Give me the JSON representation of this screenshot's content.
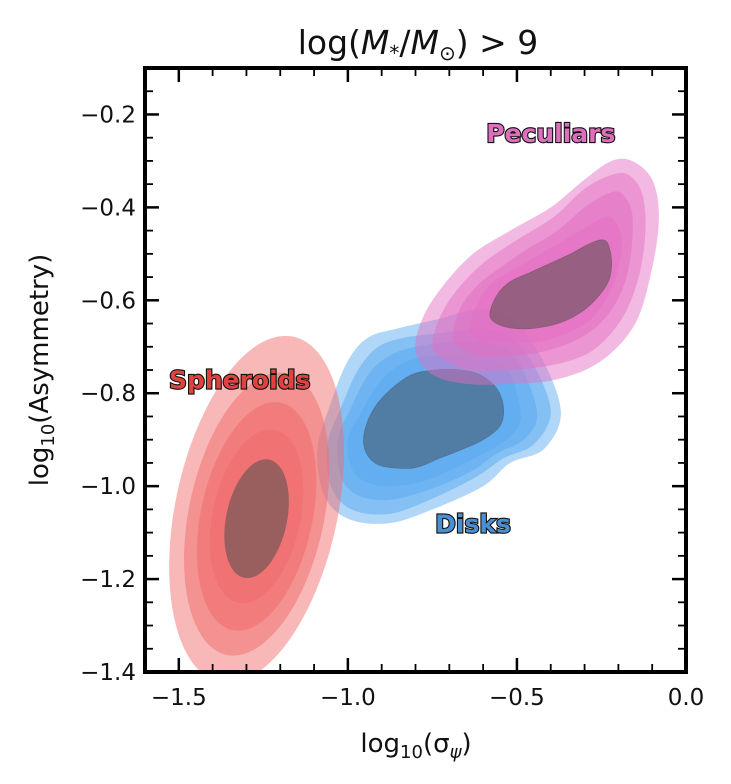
{
  "chart_data": {
    "type": "contour",
    "title_parts": {
      "prefix": "log(",
      "m1": "M",
      "m1_sub": "*",
      "slash": "/",
      "m2": "M",
      "m2_sub": "⊙",
      "suffix": ") > 9"
    },
    "xlabel_parts": {
      "prefix": "log",
      "sub": "10",
      "mid": "(σ",
      "var_sub": "ψ",
      "suffix": ")"
    },
    "ylabel_parts": {
      "prefix": "log",
      "sub": "10",
      "suffix": "(Asymmetry)"
    },
    "xlim": [
      -1.6,
      0.0
    ],
    "ylim": [
      -1.4,
      -0.1
    ],
    "x_ticks": [
      -1.5,
      -1.0,
      -0.5,
      0.0
    ],
    "x_tick_labels": [
      "−1.5",
      "−1.0",
      "−0.5",
      "0.0"
    ],
    "y_ticks": [
      -0.2,
      -0.4,
      -0.6,
      -0.8,
      -1.0,
      -1.2,
      -1.4
    ],
    "y_tick_labels": [
      "−0.2",
      "−0.4",
      "−0.6",
      "−0.8",
      "−1.0",
      "−1.2",
      "−1.4"
    ],
    "series": [
      {
        "name": "Disks",
        "color": "#5aa9f0",
        "dark_color": "#4f7396",
        "label_color": "#4a8fd1",
        "label_pos": [
          -0.63,
          -1.08
        ],
        "levels": [
          [
            [
              -1.09,
              -0.92
            ],
            [
              -1.05,
              -0.82
            ],
            [
              -1.0,
              -0.73
            ],
            [
              -0.94,
              -0.68
            ],
            [
              -0.85,
              -0.66
            ],
            [
              -0.73,
              -0.64
            ],
            [
              -0.62,
              -0.62
            ],
            [
              -0.52,
              -0.64
            ],
            [
              -0.43,
              -0.72
            ],
            [
              -0.37,
              -0.84
            ],
            [
              -0.42,
              -0.92
            ],
            [
              -0.52,
              -0.95
            ],
            [
              -0.6,
              -1.0
            ],
            [
              -0.75,
              -1.05
            ],
            [
              -0.88,
              -1.08
            ],
            [
              -1.0,
              -1.07
            ],
            [
              -1.07,
              -1.02
            ]
          ],
          [
            [
              -1.06,
              -0.91
            ],
            [
              -1.02,
              -0.83
            ],
            [
              -0.97,
              -0.75
            ],
            [
              -0.91,
              -0.7
            ],
            [
              -0.83,
              -0.68
            ],
            [
              -0.72,
              -0.67
            ],
            [
              -0.61,
              -0.66
            ],
            [
              -0.52,
              -0.68
            ],
            [
              -0.45,
              -0.74
            ],
            [
              -0.4,
              -0.84
            ],
            [
              -0.45,
              -0.91
            ],
            [
              -0.54,
              -0.94
            ],
            [
              -0.62,
              -0.98
            ],
            [
              -0.76,
              -1.03
            ],
            [
              -0.88,
              -1.06
            ],
            [
              -0.99,
              -1.05
            ],
            [
              -1.05,
              -1.0
            ]
          ],
          [
            [
              -1.03,
              -0.9
            ],
            [
              -0.99,
              -0.83
            ],
            [
              -0.94,
              -0.76
            ],
            [
              -0.88,
              -0.72
            ],
            [
              -0.8,
              -0.7
            ],
            [
              -0.7,
              -0.69
            ],
            [
              -0.6,
              -0.69
            ],
            [
              -0.52,
              -0.71
            ],
            [
              -0.47,
              -0.77
            ],
            [
              -0.44,
              -0.85
            ],
            [
              -0.48,
              -0.9
            ],
            [
              -0.56,
              -0.93
            ],
            [
              -0.64,
              -0.97
            ],
            [
              -0.77,
              -1.01
            ],
            [
              -0.88,
              -1.03
            ],
            [
              -0.97,
              -1.02
            ],
            [
              -1.02,
              -0.98
            ]
          ],
          [
            [
              -1.0,
              -0.9
            ],
            [
              -0.96,
              -0.84
            ],
            [
              -0.91,
              -0.78
            ],
            [
              -0.85,
              -0.74
            ],
            [
              -0.77,
              -0.72
            ],
            [
              -0.68,
              -0.72
            ],
            [
              -0.6,
              -0.72
            ],
            [
              -0.53,
              -0.75
            ],
            [
              -0.5,
              -0.8
            ],
            [
              -0.49,
              -0.86
            ],
            [
              -0.53,
              -0.9
            ],
            [
              -0.6,
              -0.93
            ],
            [
              -0.68,
              -0.96
            ],
            [
              -0.78,
              -0.99
            ],
            [
              -0.88,
              -1.0
            ],
            [
              -0.95,
              -0.99
            ],
            [
              -0.99,
              -0.96
            ]
          ],
          [
            [
              -0.95,
              -0.88
            ],
            [
              -0.92,
              -0.83
            ],
            [
              -0.87,
              -0.79
            ],
            [
              -0.81,
              -0.76
            ],
            [
              -0.74,
              -0.75
            ],
            [
              -0.67,
              -0.75
            ],
            [
              -0.61,
              -0.76
            ],
            [
              -0.56,
              -0.79
            ],
            [
              -0.54,
              -0.83
            ],
            [
              -0.55,
              -0.87
            ],
            [
              -0.6,
              -0.9
            ],
            [
              -0.66,
              -0.92
            ],
            [
              -0.73,
              -0.94
            ],
            [
              -0.8,
              -0.96
            ],
            [
              -0.87,
              -0.96
            ],
            [
              -0.92,
              -0.95
            ],
            [
              -0.95,
              -0.92
            ]
          ]
        ]
      },
      {
        "name": "Peculiars",
        "color": "#e36fc2",
        "dark_color": "#8a5a74",
        "label_color": "#de6fbf",
        "label_pos": [
          -0.4,
          -0.24
        ],
        "levels": [
          [
            [
              -0.8,
              -0.71
            ],
            [
              -0.78,
              -0.64
            ],
            [
              -0.72,
              -0.57
            ],
            [
              -0.63,
              -0.5
            ],
            [
              -0.52,
              -0.45
            ],
            [
              -0.4,
              -0.4
            ],
            [
              -0.3,
              -0.34
            ],
            [
              -0.22,
              -0.3
            ],
            [
              -0.16,
              -0.3
            ],
            [
              -0.1,
              -0.34
            ],
            [
              -0.08,
              -0.42
            ],
            [
              -0.1,
              -0.53
            ],
            [
              -0.15,
              -0.65
            ],
            [
              -0.25,
              -0.73
            ],
            [
              -0.38,
              -0.77
            ],
            [
              -0.52,
              -0.78
            ],
            [
              -0.65,
              -0.78
            ],
            [
              -0.75,
              -0.76
            ]
          ],
          [
            [
              -0.75,
              -0.7
            ],
            [
              -0.73,
              -0.64
            ],
            [
              -0.68,
              -0.58
            ],
            [
              -0.6,
              -0.52
            ],
            [
              -0.5,
              -0.47
            ],
            [
              -0.39,
              -0.42
            ],
            [
              -0.3,
              -0.36
            ],
            [
              -0.22,
              -0.33
            ],
            [
              -0.17,
              -0.33
            ],
            [
              -0.13,
              -0.37
            ],
            [
              -0.12,
              -0.45
            ],
            [
              -0.14,
              -0.55
            ],
            [
              -0.19,
              -0.64
            ],
            [
              -0.28,
              -0.71
            ],
            [
              -0.4,
              -0.74
            ],
            [
              -0.53,
              -0.75
            ],
            [
              -0.64,
              -0.75
            ],
            [
              -0.71,
              -0.73
            ]
          ],
          [
            [
              -0.69,
              -0.68
            ],
            [
              -0.67,
              -0.62
            ],
            [
              -0.62,
              -0.57
            ],
            [
              -0.55,
              -0.53
            ],
            [
              -0.47,
              -0.49
            ],
            [
              -0.38,
              -0.45
            ],
            [
              -0.3,
              -0.4
            ],
            [
              -0.23,
              -0.37
            ],
            [
              -0.19,
              -0.37
            ],
            [
              -0.16,
              -0.41
            ],
            [
              -0.16,
              -0.48
            ],
            [
              -0.18,
              -0.56
            ],
            [
              -0.23,
              -0.63
            ],
            [
              -0.31,
              -0.68
            ],
            [
              -0.42,
              -0.71
            ],
            [
              -0.53,
              -0.72
            ],
            [
              -0.62,
              -0.72
            ],
            [
              -0.67,
              -0.7
            ]
          ],
          [
            [
              -0.64,
              -0.66
            ],
            [
              -0.62,
              -0.61
            ],
            [
              -0.57,
              -0.56
            ],
            [
              -0.5,
              -0.53
            ],
            [
              -0.43,
              -0.5
            ],
            [
              -0.36,
              -0.47
            ],
            [
              -0.29,
              -0.44
            ],
            [
              -0.24,
              -0.42
            ],
            [
              -0.21,
              -0.43
            ],
            [
              -0.19,
              -0.47
            ],
            [
              -0.2,
              -0.53
            ],
            [
              -0.23,
              -0.59
            ],
            [
              -0.28,
              -0.64
            ],
            [
              -0.35,
              -0.67
            ],
            [
              -0.44,
              -0.69
            ],
            [
              -0.53,
              -0.69
            ],
            [
              -0.6,
              -0.69
            ],
            [
              -0.63,
              -0.68
            ]
          ],
          [
            [
              -0.58,
              -0.63
            ],
            [
              -0.56,
              -0.59
            ],
            [
              -0.52,
              -0.56
            ],
            [
              -0.46,
              -0.54
            ],
            [
              -0.4,
              -0.52
            ],
            [
              -0.34,
              -0.5
            ],
            [
              -0.29,
              -0.48
            ],
            [
              -0.25,
              -0.47
            ],
            [
              -0.23,
              -0.48
            ],
            [
              -0.22,
              -0.52
            ],
            [
              -0.23,
              -0.56
            ],
            [
              -0.27,
              -0.6
            ],
            [
              -0.32,
              -0.63
            ],
            [
              -0.38,
              -0.65
            ],
            [
              -0.45,
              -0.66
            ],
            [
              -0.51,
              -0.66
            ],
            [
              -0.56,
              -0.65
            ]
          ]
        ]
      },
      {
        "name": "Spheroids",
        "color": "#f06a6a",
        "dark_color": "#8a5c5c",
        "label_color": "#e0433f",
        "label_pos": [
          -1.32,
          -0.77
        ],
        "ellipses": [
          {
            "cx": -1.27,
            "cy": -1.05,
            "rx": 0.24,
            "ry": 0.38,
            "tilt": 12
          },
          {
            "cx": -1.27,
            "cy": -1.06,
            "rx": 0.2,
            "ry": 0.31,
            "tilt": 12
          },
          {
            "cx": -1.27,
            "cy": -1.065,
            "rx": 0.165,
            "ry": 0.25,
            "tilt": 12
          },
          {
            "cx": -1.27,
            "cy": -1.065,
            "rx": 0.13,
            "ry": 0.19,
            "tilt": 12
          },
          {
            "cx": -1.27,
            "cy": -1.07,
            "rx": 0.09,
            "ry": 0.13,
            "tilt": 12
          }
        ]
      }
    ]
  }
}
